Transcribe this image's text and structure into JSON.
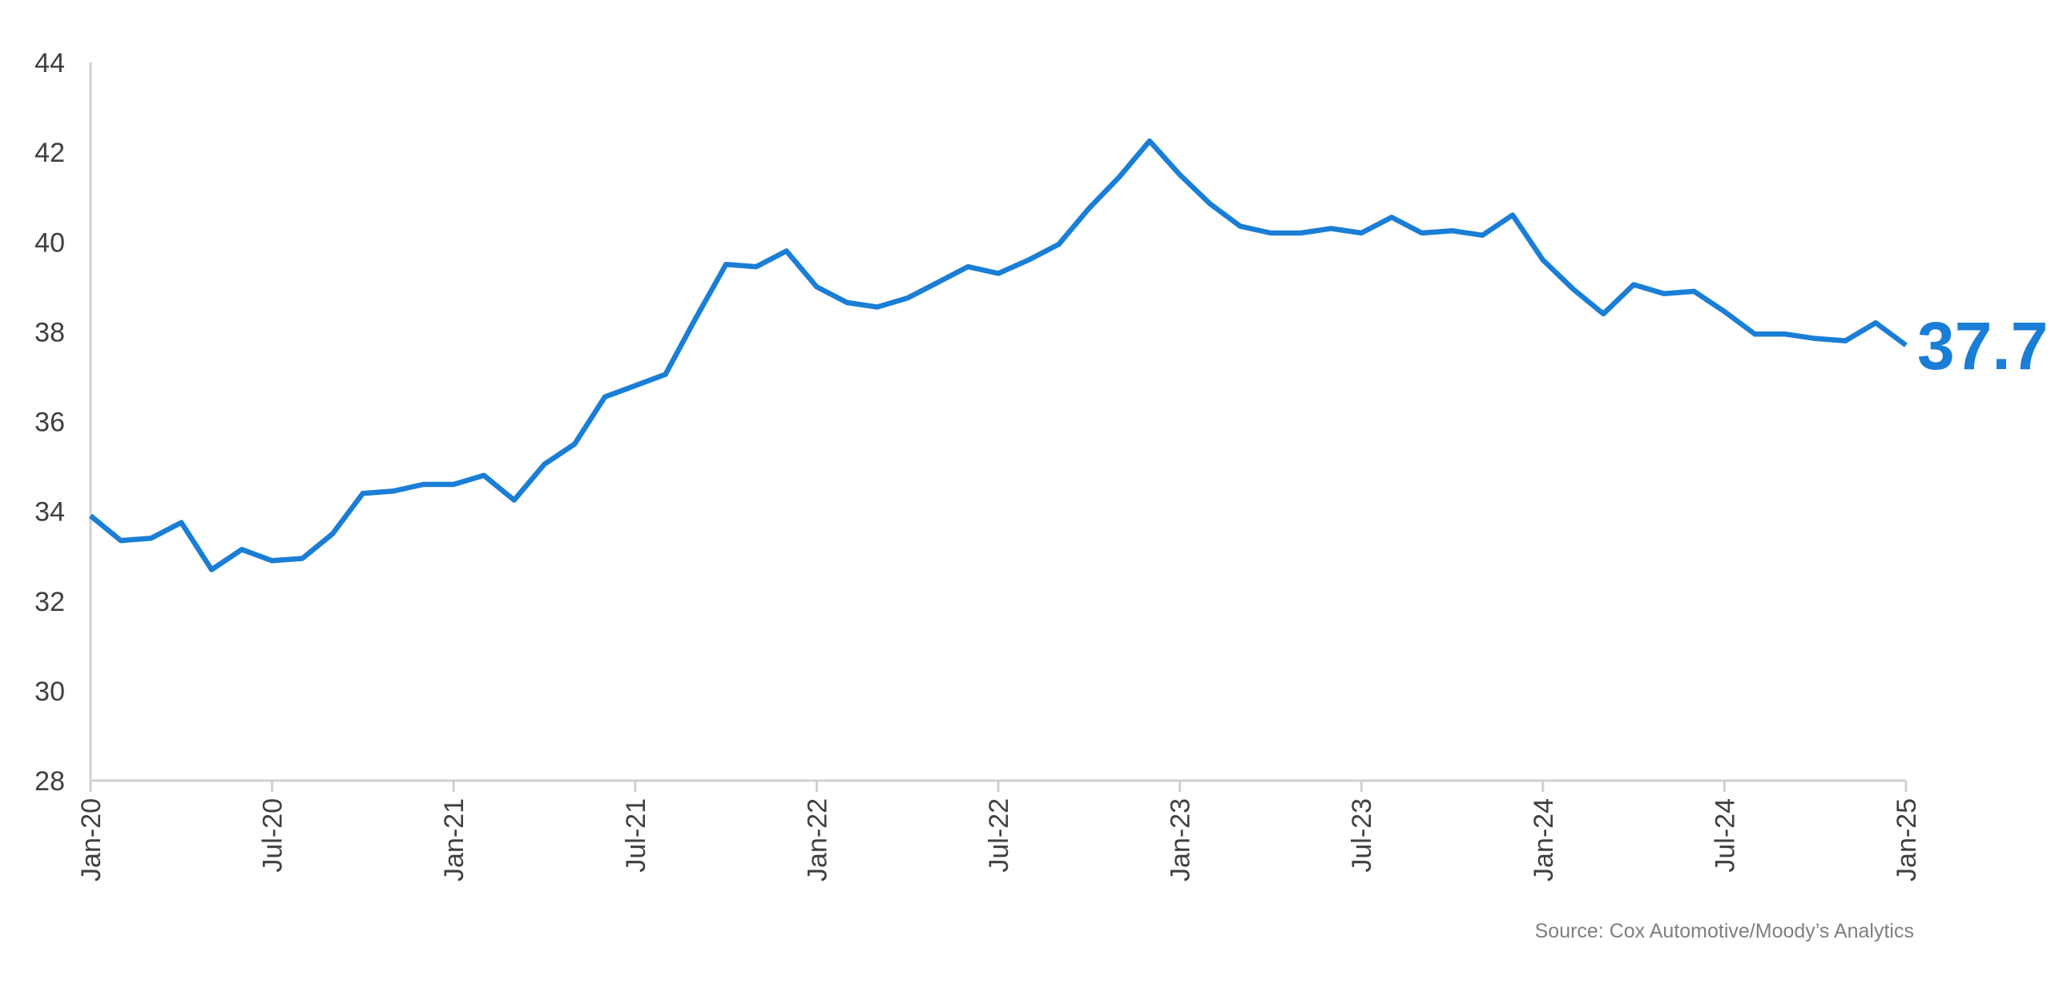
{
  "chart_data": {
    "type": "line",
    "title": "",
    "xlabel": "",
    "ylabel": "",
    "ylim": [
      28,
      44
    ],
    "yticks": [
      "28",
      "30",
      "32",
      "34",
      "36",
      "38",
      "40",
      "42",
      "44"
    ],
    "xticks": [
      "Jan-20",
      "Jul-20",
      "Jan-21",
      "Jul-21",
      "Jan-22",
      "Jul-22",
      "Jan-23",
      "Jul-23",
      "Jan-24",
      "Jul-24",
      "Jan-25"
    ],
    "grid": false,
    "legend": "none",
    "x": [
      "2020-01",
      "2020-02",
      "2020-03",
      "2020-04",
      "2020-05",
      "2020-06",
      "2020-07",
      "2020-08",
      "2020-09",
      "2020-10",
      "2020-11",
      "2020-12",
      "2021-01",
      "2021-02",
      "2021-03",
      "2021-04",
      "2021-05",
      "2021-06",
      "2021-07",
      "2021-08",
      "2021-09",
      "2021-10",
      "2021-11",
      "2021-12",
      "2022-01",
      "2022-02",
      "2022-03",
      "2022-04",
      "2022-05",
      "2022-06",
      "2022-07",
      "2022-08",
      "2022-09",
      "2022-10",
      "2022-11",
      "2022-12",
      "2023-01",
      "2023-02",
      "2023-03",
      "2023-04",
      "2023-05",
      "2023-06",
      "2023-07",
      "2023-08",
      "2023-09",
      "2023-10",
      "2023-11",
      "2023-12",
      "2024-01",
      "2024-02",
      "2024-03",
      "2024-04",
      "2024-05",
      "2024-06",
      "2024-07",
      "2024-08",
      "2024-09",
      "2024-10",
      "2024-11",
      "2024-12",
      "2025-01"
    ],
    "series": [
      {
        "color": "#1a7ed6",
        "values": [
          33.9,
          33.35,
          33.4,
          33.75,
          32.7,
          33.15,
          32.9,
          32.95,
          33.5,
          34.4,
          34.45,
          34.6,
          34.6,
          34.8,
          34.25,
          35.05,
          35.5,
          36.55,
          36.8,
          37.05,
          38.3,
          39.5,
          39.45,
          39.8,
          39.0,
          38.65,
          38.55,
          38.75,
          39.1,
          39.45,
          39.3,
          39.6,
          39.95,
          40.75,
          41.45,
          42.25,
          41.5,
          40.85,
          40.35,
          40.2,
          40.2,
          40.3,
          40.2,
          40.55,
          40.2,
          40.25,
          40.15,
          40.6,
          39.6,
          38.95,
          38.4,
          39.05,
          38.85,
          38.9,
          38.45,
          37.95,
          37.95,
          37.85,
          37.8,
          38.2,
          37.7
        ]
      }
    ],
    "end_label": "37.7",
    "source": "Source: Cox Automotive/Moody’s Analytics"
  }
}
